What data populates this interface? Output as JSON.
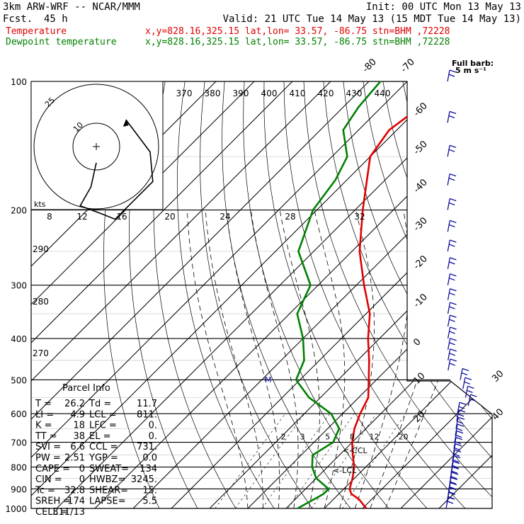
{
  "header": {
    "model": "3km ARW-WRF -- NCAR/MMM",
    "fcst_label": "Fcst.",
    "fcst_value": "45 h",
    "init": "Init: 00 UTC Mon 13 May 13",
    "valid": "Valid: 21 UTC Tue 14 May 13 (15 MDT Tue 14 May 13)"
  },
  "legend": [
    {
      "name": "Temperature",
      "info": "x,y=828.16,325.15   lat,lon= 33.57, -86.75   stn=BHM ,72228",
      "color": "#e00000"
    },
    {
      "name": "Dewpoint temperature",
      "info": "x,y=828.16,325.15   lat,lon= 33.57, -86.75   stn=BHM ,72228",
      "color": "#008000"
    }
  ],
  "full_barb": "Full barb:",
  "full_barb_units": "5 m s⁻¹",
  "hodograph": {
    "units": "kts",
    "ring_labels": [
      "10",
      "25"
    ],
    "scale_labels": [
      "8",
      "12",
      "16",
      "20",
      "24",
      "28",
      "32"
    ]
  },
  "parcel_info": {
    "title": "Parcel Info",
    "rows": [
      [
        "T  =",
        "26.2",
        "Td =",
        "11.7"
      ],
      [
        "LI =",
        "4.9",
        "LCL =",
        "811."
      ],
      [
        "K  =",
        "18",
        "LFC =",
        "0."
      ],
      [
        "TT =",
        "38",
        "EL  =",
        "0."
      ],
      [
        "SVI =",
        "6.6",
        "CCL =",
        "731."
      ],
      [
        "PW =",
        "2.51",
        "YGP =",
        "0.0"
      ],
      [
        "CAPE =",
        "0",
        "SWEAT=",
        "134"
      ],
      [
        "CIN =",
        "0",
        "HWBZ=",
        "3245."
      ],
      [
        "Tc =",
        "32.8",
        "SHEAR=",
        "15."
      ],
      [
        "SREH =",
        "174",
        "LAPSE=",
        "5.5"
      ],
      [
        "CELL =",
        "311/13",
        "",
        ""
      ]
    ]
  },
  "annotations": {
    "ccl": "<-CCL",
    "lcl": "<-LCL",
    "m": "M"
  },
  "chart_data": {
    "type": "skew-t",
    "pressure_levels": [
      100,
      200,
      300,
      400,
      500,
      600,
      700,
      800,
      900,
      1000
    ],
    "isotherm_labels": [
      "-80",
      "-70",
      "-60",
      "-50",
      "-40",
      "-30",
      "-20",
      "-10",
      "0",
      "10",
      "20",
      "30",
      "40"
    ],
    "theta_labels": [
      "370",
      "380",
      "390",
      "400",
      "410",
      "420",
      "430",
      "440"
    ],
    "theta_low_labels": [
      "290",
      "280",
      "270"
    ],
    "mixing_ratio_labels": [
      "2",
      "3",
      "5",
      "8",
      "12",
      "20"
    ],
    "temperature": {
      "name": "Temperature",
      "color": "#e00000",
      "points": [
        [
          1000,
          31
        ],
        [
          950,
          26.5
        ],
        [
          925,
          23.3
        ],
        [
          900,
          21.5
        ],
        [
          850,
          19.5
        ],
        [
          800,
          17
        ],
        [
          750,
          13.5
        ],
        [
          700,
          10
        ],
        [
          650,
          7
        ],
        [
          600,
          4.6
        ],
        [
          550,
          2.5
        ],
        [
          500,
          -2
        ],
        [
          450,
          -7
        ],
        [
          400,
          -13
        ],
        [
          350,
          -19
        ],
        [
          300,
          -28
        ],
        [
          250,
          -38
        ],
        [
          200,
          -48
        ],
        [
          150,
          -60
        ],
        [
          130,
          -62
        ],
        [
          115,
          -60
        ],
        [
          100,
          -56
        ]
      ]
    },
    "dewpoint": {
      "name": "Dewpoint temperature",
      "color": "#008000",
      "points": [
        [
          1000,
          13
        ],
        [
          950,
          15
        ],
        [
          925,
          16
        ],
        [
          900,
          16
        ],
        [
          850,
          10
        ],
        [
          800,
          6
        ],
        [
          750,
          3
        ],
        [
          700,
          5
        ],
        [
          650,
          3
        ],
        [
          600,
          -3
        ],
        [
          550,
          -13
        ],
        [
          500,
          -21
        ],
        [
          450,
          -24
        ],
        [
          400,
          -30
        ],
        [
          350,
          -38
        ],
        [
          300,
          -42
        ],
        [
          250,
          -54
        ],
        [
          200,
          -61
        ],
        [
          170,
          -63
        ],
        [
          150,
          -66
        ],
        [
          130,
          -74
        ],
        [
          115,
          -76
        ],
        [
          100,
          -77
        ]
      ]
    },
    "hodograph_points": [
      [
        0.0,
        0.6
      ],
      [
        -0.2,
        1.5
      ],
      [
        -0.6,
        2.2
      ],
      [
        0.2,
        2.5
      ],
      [
        0.7,
        2.7
      ],
      [
        1.6,
        1.8
      ],
      [
        2.1,
        1.3
      ],
      [
        2.0,
        0.2
      ],
      [
        1.1,
        -1.0
      ]
    ]
  }
}
